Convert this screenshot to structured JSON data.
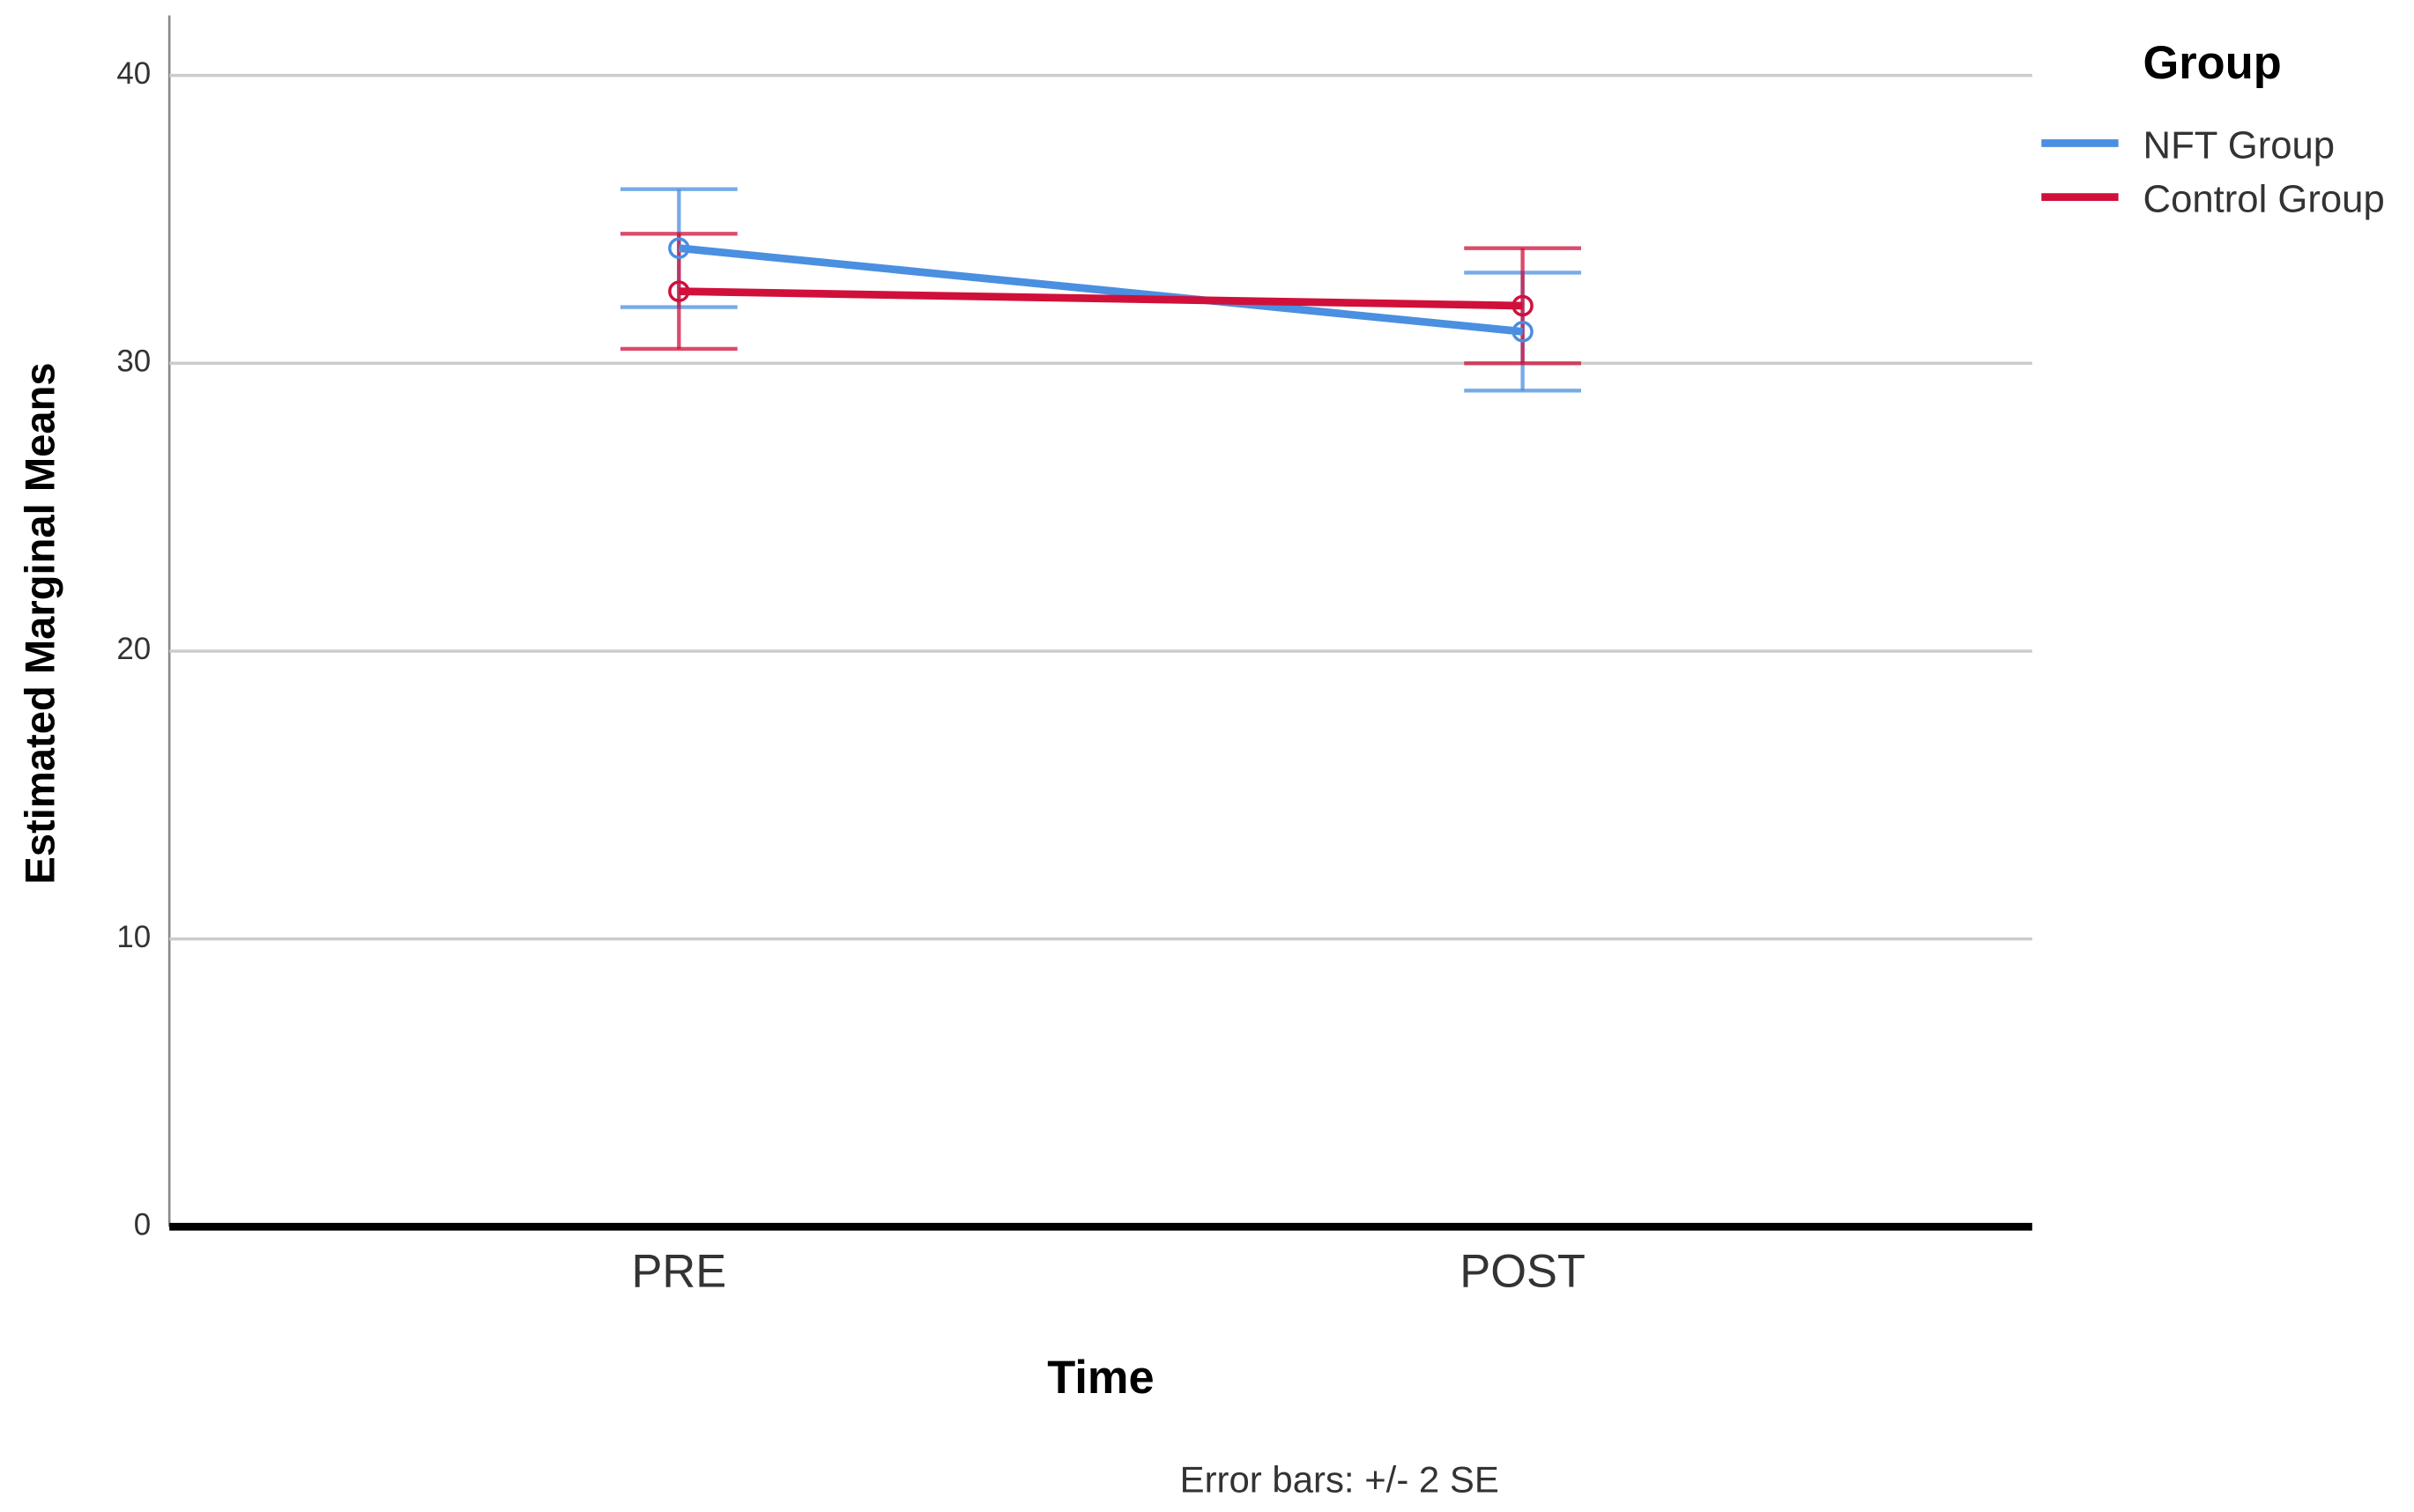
{
  "chart_data": {
    "type": "line",
    "x_label": "Time",
    "y_label": "Estimated Marginal Means",
    "note": "Error bars: +/- 2 SE",
    "legend_title": "Group",
    "legend": "top-right",
    "grid": true,
    "categories": [
      "PRE",
      "POST"
    ],
    "ylim": [
      0,
      40
    ],
    "yticks": [
      0,
      10,
      20,
      30,
      40
    ],
    "series": [
      {
        "name": "NFT Group",
        "color": "#4a8fe0",
        "values": [
          34.0,
          31.1
        ],
        "errors": [
          2.05,
          2.05
        ]
      },
      {
        "name": "Control Group",
        "color": "#d0103a",
        "values": [
          32.5,
          32.0
        ],
        "errors": [
          2.0,
          2.0
        ]
      }
    ]
  }
}
